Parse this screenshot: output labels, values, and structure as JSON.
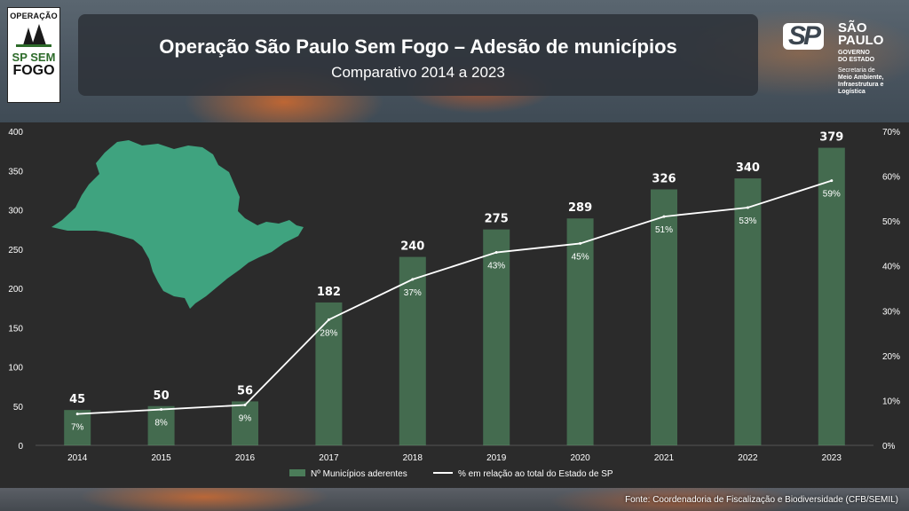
{
  "header": {
    "title": "Operação São Paulo Sem Fogo – Adesão de municípios",
    "subtitle": "Comparativo 2014 a 2023"
  },
  "logo_operacao": {
    "line1": "OPERAÇÃO",
    "line2": "SP SEM",
    "line3": "FOGO"
  },
  "logo_sp": {
    "mark": "SP",
    "name_line1": "SÃO",
    "name_line2": "PAULO",
    "gov_line1": "GOVERNO",
    "gov_line2": "DO ESTADO",
    "sec_line1": "Secretaria de",
    "sec_line2": "Meio Ambiente,",
    "sec_line3": "Infraestrutura e",
    "sec_line4": "Logística"
  },
  "source": "Fonte: Coordenadoria de Fiscalização e Biodiversidade (CFB/SEMIL)",
  "colors": {
    "bar": "#5aa06e",
    "line": "#ffffff",
    "map": "#3fa37f",
    "axis_text": "#ffffff"
  },
  "chart_data": {
    "type": "bar",
    "categories": [
      "2014",
      "2015",
      "2016",
      "2017",
      "2018",
      "2019",
      "2020",
      "2021",
      "2022",
      "2023"
    ],
    "series": [
      {
        "name": "Nº Municípios aderentes",
        "type": "bar",
        "axis": "left",
        "values": [
          45,
          50,
          56,
          182,
          240,
          275,
          289,
          326,
          340,
          379
        ],
        "labels": [
          "45",
          "50",
          "56",
          "182",
          "240",
          "275",
          "289",
          "326",
          "340",
          "379"
        ]
      },
      {
        "name": "% em relação ao total do Estado de SP",
        "type": "line",
        "axis": "right",
        "values": [
          7,
          8,
          9,
          28,
          37,
          43,
          45,
          51,
          53,
          59
        ],
        "labels": [
          "7%",
          "8%",
          "9%",
          "28%",
          "37%",
          "43%",
          "45%",
          "51%",
          "53%",
          "59%"
        ]
      }
    ],
    "ylim": [
      0,
      400
    ],
    "yticks": [
      "0",
      "50",
      "100",
      "150",
      "200",
      "250",
      "300",
      "350",
      "400"
    ],
    "y2lim": [
      0,
      70
    ],
    "y2ticks": [
      "0%",
      "10%",
      "20%",
      "30%",
      "40%",
      "50%",
      "60%",
      "70%"
    ],
    "legend_position": "bottom",
    "grid": false
  }
}
